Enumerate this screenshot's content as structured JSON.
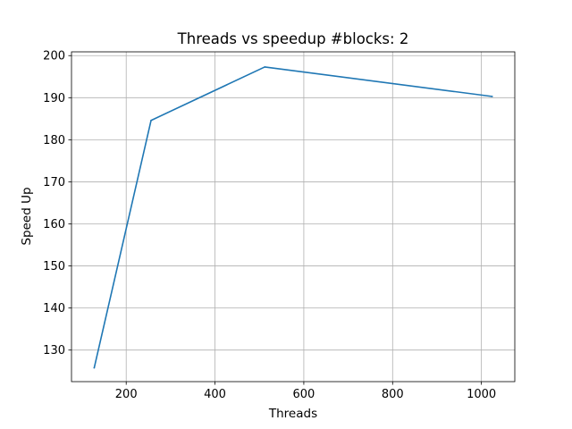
{
  "chart_data": {
    "type": "line",
    "title": "Threads vs speedup #blocks: 2",
    "xlabel": "Threads",
    "ylabel": "Speed Up",
    "xlim": [
      76.8,
      1075.2
    ],
    "ylim": [
      122.5,
      200.9
    ],
    "x_ticks": [
      200,
      400,
      600,
      800,
      1000
    ],
    "y_ticks": [
      130,
      140,
      150,
      160,
      170,
      180,
      190,
      200
    ],
    "grid": true,
    "legend": "none",
    "series": [
      {
        "color": "#1f77b4",
        "points": [
          {
            "x": 128,
            "y": 125.8
          },
          {
            "x": 256,
            "y": 184.6
          },
          {
            "x": 512,
            "y": 197.3
          },
          {
            "x": 1024,
            "y": 190.3
          }
        ]
      }
    ]
  }
}
